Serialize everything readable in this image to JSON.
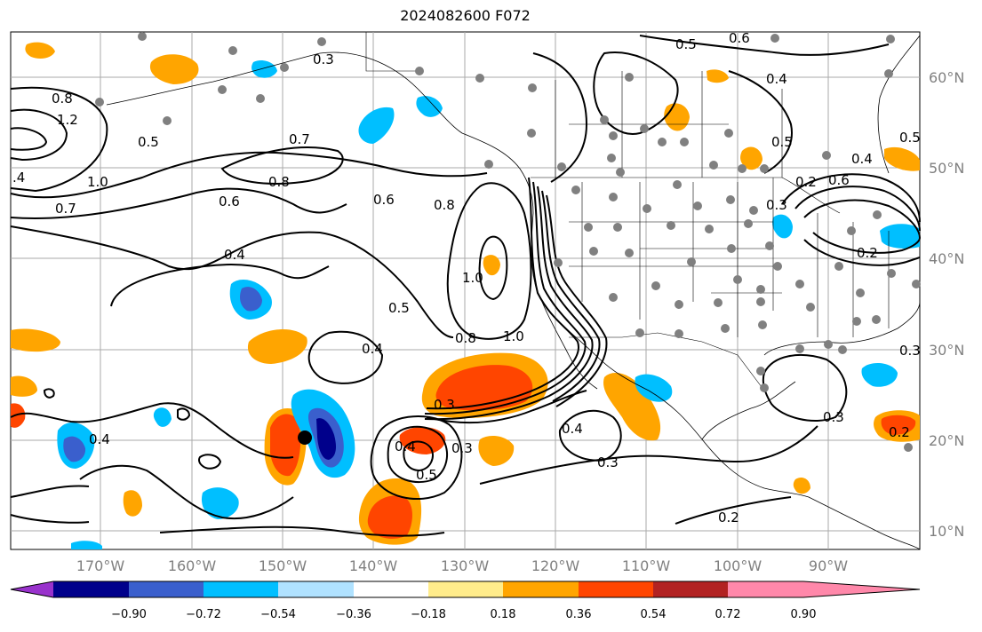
{
  "title": "2024082600 F072",
  "map": {
    "lat_labels": [
      "60°N",
      "50°N",
      "40°N",
      "30°N",
      "20°N",
      "10°N"
    ],
    "lon_labels": [
      "170°W",
      "160°W",
      "150°W",
      "140°W",
      "130°W",
      "120°W",
      "110°W",
      "100°W",
      "90°W"
    ],
    "contour_labels": [
      "0.3",
      "0.5",
      "0.6",
      "0.8",
      "1.2",
      "0.5",
      "0.7",
      "1.0",
      ".4",
      "0.7",
      "0.8",
      "0.6",
      "0.6",
      "0.8",
      "0.4",
      "1.0",
      "0.5",
      "0.4",
      "0.8",
      "1.0",
      "0.3",
      "0.4",
      "0.5",
      "0.3",
      "0.4",
      "0.3",
      "0.2",
      "0.5",
      "0.4",
      "0.2",
      "0.6",
      "0.4",
      "0.2",
      "0.3",
      "0.3",
      "0.2",
      "0.3",
      "0.4",
      "0.5"
    ]
  },
  "colorbar": {
    "colors": [
      "#9932cc",
      "#00008b",
      "#3a5fcd",
      "#00bfff",
      "#b0e2ff",
      "#ffffff",
      "#ffec8b",
      "#ffa500",
      "#ff4500",
      "#b22222",
      "#ff88aa"
    ],
    "tick_labels": [
      "−0.90",
      "−0.72",
      "−0.54",
      "−0.36",
      "−0.18",
      "0.18",
      "0.36",
      "0.54",
      "0.72",
      "0.90"
    ]
  }
}
